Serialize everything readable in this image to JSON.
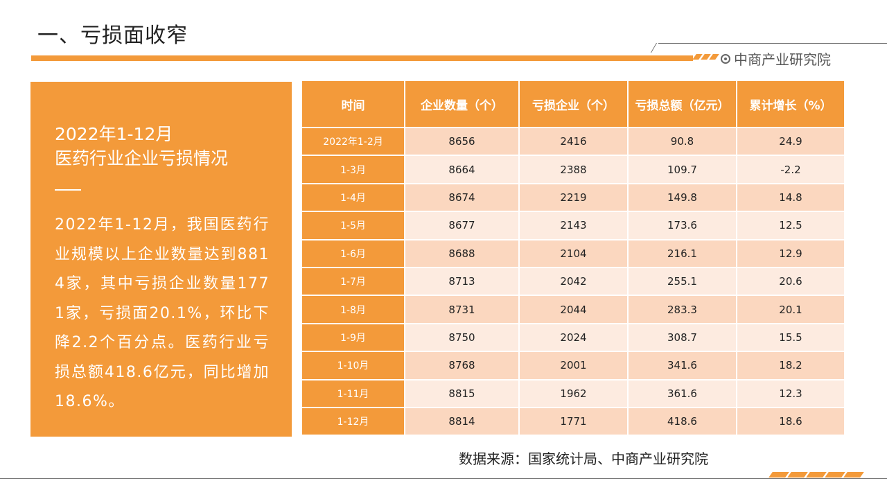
{
  "header": {
    "title": "一、亏损面收窄",
    "brand": "中商产业研究院",
    "brand_icon": "target-circle-icon",
    "accent_color": "#f39a3a"
  },
  "summary": {
    "title": "2022年1-12月",
    "subtitle": "医药行业企业亏损情况",
    "text": "2022年1-12月，我国医药行业规模以上企业数量达到8814家，其中亏损企业数量1771家，亏损面20.1%，环比下降2.2个百分点。医药行业亏损总额418.6亿元，同比增加18.6%。"
  },
  "table": {
    "headers": [
      "时间",
      "企业数量（个）",
      "亏损企业（个）",
      "亏损总额（亿元）",
      "累计增长（%）"
    ],
    "rows": [
      [
        "2022年1-2月",
        "8656",
        "2416",
        "90.8",
        "24.9"
      ],
      [
        "1-3月",
        "8664",
        "2388",
        "109.7",
        "-2.2"
      ],
      [
        "1-4月",
        "8674",
        "2219",
        "149.8",
        "14.8"
      ],
      [
        "1-5月",
        "8677",
        "2143",
        "173.6",
        "12.5"
      ],
      [
        "1-6月",
        "8688",
        "2104",
        "216.1",
        "12.9"
      ],
      [
        "1-7月",
        "8713",
        "2042",
        "255.1",
        "20.6"
      ],
      [
        "1-8月",
        "8731",
        "2044",
        "283.3",
        "20.1"
      ],
      [
        "1-9月",
        "8750",
        "2024",
        "308.7",
        "15.5"
      ],
      [
        "1-10月",
        "8768",
        "2001",
        "341.6",
        "18.2"
      ],
      [
        "1-11月",
        "8815",
        "1962",
        "361.6",
        "12.3"
      ],
      [
        "1-12月",
        "8814",
        "1771",
        "418.6",
        "18.6"
      ]
    ]
  },
  "source": "数据来源：国家统计局、中商产业研究院"
}
